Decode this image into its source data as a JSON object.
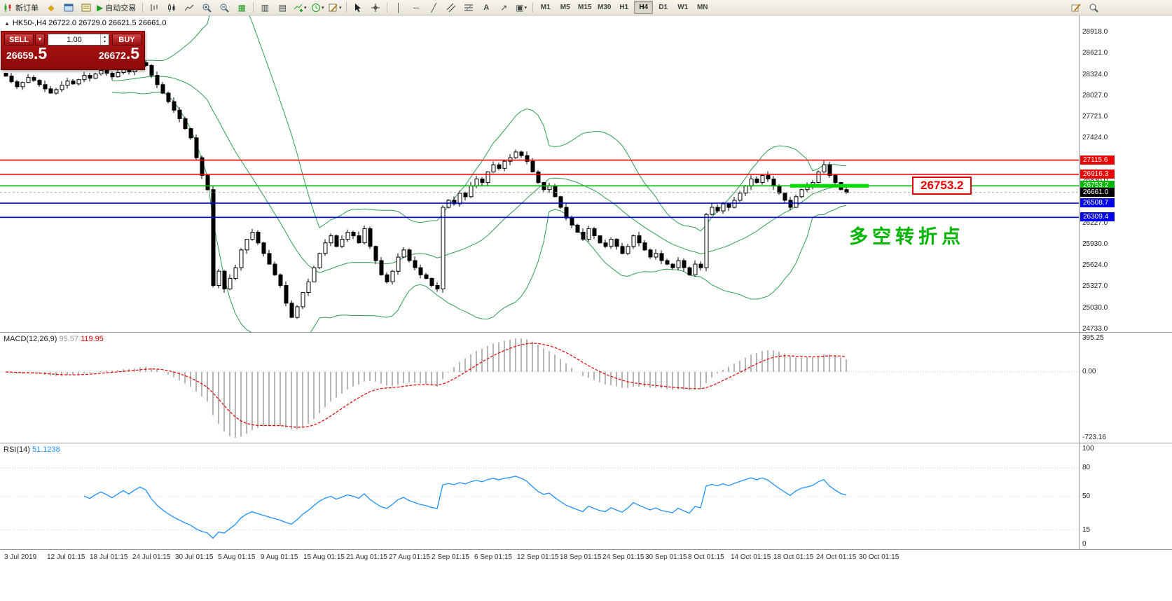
{
  "toolbar": {
    "new_order": "新订单",
    "autotrading": "自动交易",
    "timeframes": [
      "M1",
      "M5",
      "M15",
      "M30",
      "H1",
      "H4",
      "D1",
      "W1",
      "MN"
    ],
    "active_timeframe": "H4"
  },
  "one_click": {
    "sell_label": "SELL",
    "buy_label": "BUY",
    "volume": "1.00",
    "sell_price_main": "26659",
    "sell_price_big": ".5",
    "buy_price_main": "26672",
    "buy_price_big": ".5"
  },
  "chart": {
    "symbol_info": "HK50-,H4  26722.0 26729.0 26621.5 26661.0",
    "callout_label": "26753.2",
    "annotation": "多空转折点",
    "y_axis_labels": [
      "28918.0",
      "28621.0",
      "28324.0",
      "28027.0",
      "27721.0",
      "27424.0",
      "27127.0",
      "26830.0",
      "26533.0",
      "26227.0",
      "25930.0",
      "25624.0",
      "25327.0",
      "25030.0",
      "24733.0"
    ],
    "x_axis_labels": [
      "3 Jul 2019",
      "12 Jul 01:15",
      "18 Jul 01:15",
      "24 Jul 01:15",
      "30 Jul 01:15",
      "5 Aug 01:15",
      "9 Aug 01:15",
      "15 Aug 01:15",
      "21 Aug 01:15",
      "27 Aug 01:15",
      "2 Sep 01:15",
      "6 Sep 01:15",
      "12 Sep 01:15",
      "18 Sep 01:15",
      "24 Sep 01:15",
      "30 Sep 01:15",
      "8 Oct 01:15",
      "14 Oct 01:15",
      "18 Oct 01:15",
      "24 Oct 01:15",
      "30 Oct 01:15"
    ]
  },
  "indicators": {
    "macd": {
      "name": "MACD(12,26,9)",
      "value_main": "95.57",
      "value_signal": "119.95",
      "axis_labels": [
        "395.25",
        "0.00",
        "-723.16"
      ]
    },
    "rsi": {
      "name": "RSI(14)",
      "value": "51.1238",
      "axis_labels": [
        "100",
        "80",
        "50",
        "15",
        "0"
      ],
      "axis_values": [
        100,
        80,
        50,
        15,
        0
      ],
      "levels": [
        80,
        50,
        15
      ]
    }
  },
  "chart_data": {
    "type": "candlestick",
    "symbol": "HK50",
    "period": "H4",
    "ohlc_display": {
      "open": 26722.0,
      "high": 26729.0,
      "low": 26621.5,
      "close": 26661.0
    },
    "price_axis": {
      "top": 28918.0,
      "bottom": 24733.0
    },
    "closes": [
      28300,
      28220,
      28150,
      28210,
      28280,
      28240,
      28180,
      28120,
      28060,
      28110,
      28170,
      28230,
      28190,
      28250,
      28310,
      28270,
      28330,
      28380,
      28340,
      28290,
      28350,
      28410,
      28360,
      28430,
      28490,
      28450,
      28310,
      28180,
      28060,
      27940,
      27820,
      27700,
      27560,
      27430,
      27150,
      26900,
      26700,
      25350,
      25550,
      25300,
      25450,
      25600,
      25850,
      26000,
      26100,
      25950,
      25800,
      25650,
      25500,
      25350,
      25100,
      24900,
      25050,
      25250,
      25400,
      25600,
      25800,
      25950,
      26050,
      25900,
      26000,
      26100,
      26050,
      25950,
      26150,
      25900,
      25700,
      25500,
      25400,
      25550,
      25750,
      25850,
      25700,
      25600,
      25500,
      25450,
      25350,
      25300,
      26450,
      26550,
      26500,
      26650,
      26600,
      26750,
      26850,
      26800,
      26950,
      27050,
      27000,
      27100,
      27150,
      27230,
      27180,
      27100,
      26950,
      26800,
      26700,
      26750,
      26600,
      26450,
      26300,
      26200,
      26100,
      26000,
      26150,
      26050,
      25950,
      25900,
      26000,
      25900,
      25800,
      25900,
      26050,
      25950,
      25850,
      25750,
      25800,
      25700,
      25650,
      25600,
      25700,
      25600,
      25500,
      25650,
      25600,
      26350,
      26450,
      26400,
      26500,
      26450,
      26550,
      26650,
      26750,
      26850,
      26800,
      26900,
      26850,
      26750,
      26650,
      26550,
      26450,
      26600,
      26700,
      26750,
      26800,
      26950,
      27050,
      26900,
      26800,
      26700,
      26661
    ],
    "price_lines": [
      {
        "value": 27115.6,
        "label": "27115.6",
        "color": "#e60000"
      },
      {
        "value": 26916.3,
        "label": "26916.3",
        "color": "#e60000"
      },
      {
        "value": 26753.2,
        "label": "26753.2",
        "color": "#00b400",
        "highlight_segment": true
      },
      {
        "value": 26661.0,
        "label": "26661.0",
        "color": "#000000",
        "style": "current"
      },
      {
        "value": 26508.7,
        "label": "26508.7",
        "color": "#0000e6"
      },
      {
        "value": 26309.4,
        "label": "26309.4",
        "color": "#0000e6"
      }
    ],
    "indicator_settings": {
      "bollinger_period": 20,
      "macd": [
        12,
        26,
        9
      ],
      "rsi_period": 14
    }
  },
  "colors": {
    "band_green": "#2f9e4f",
    "hist_silver": "#b4b4b4",
    "signal_red": "#e60000",
    "rsi_blue": "#1e90ff",
    "highlight_green": "#00dc00",
    "panel_red": "#a50d0d"
  }
}
